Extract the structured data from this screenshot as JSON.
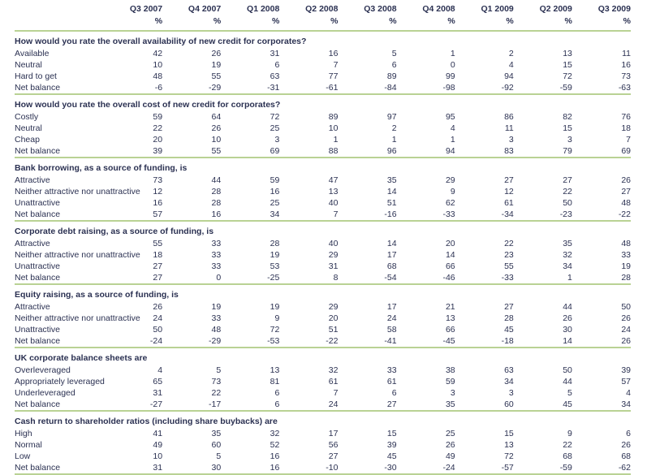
{
  "colors": {
    "text": "#2b3152",
    "rule": "#b9d294",
    "background": "#ffffff"
  },
  "table": {
    "columns": [
      "Q3 2007",
      "Q4 2007",
      "Q1 2008",
      "Q2 2008",
      "Q3 2008",
      "Q4 2008",
      "Q1 2009",
      "Q2 2009",
      "Q3 2009"
    ],
    "unit_label": "%",
    "sections": [
      {
        "title": "How would you rate the overall availability of new credit for corporates?",
        "rows": [
          {
            "label": "Available",
            "values": [
              42,
              26,
              31,
              16,
              5,
              1,
              2,
              13,
              11
            ]
          },
          {
            "label": "Neutral",
            "values": [
              10,
              19,
              6,
              7,
              6,
              0,
              4,
              15,
              16
            ]
          },
          {
            "label": "Hard to get",
            "values": [
              48,
              55,
              63,
              77,
              89,
              99,
              94,
              72,
              73
            ]
          },
          {
            "label": "Net balance",
            "values": [
              -6,
              -29,
              -31,
              -61,
              -84,
              -98,
              -92,
              -59,
              -63
            ]
          }
        ]
      },
      {
        "title": "How would you rate the overall cost of new credit for corporates?",
        "rows": [
          {
            "label": "Costly",
            "values": [
              59,
              64,
              72,
              89,
              97,
              95,
              86,
              82,
              76
            ]
          },
          {
            "label": "Neutral",
            "values": [
              22,
              26,
              25,
              10,
              2,
              4,
              11,
              15,
              18
            ]
          },
          {
            "label": "Cheap",
            "values": [
              20,
              10,
              3,
              1,
              1,
              1,
              3,
              3,
              7
            ]
          },
          {
            "label": "Net balance",
            "values": [
              39,
              55,
              69,
              88,
              96,
              94,
              83,
              79,
              69
            ]
          }
        ]
      },
      {
        "title": "Bank borrowing, as a source of funding, is",
        "rows": [
          {
            "label": "Attractive",
            "values": [
              73,
              44,
              59,
              47,
              35,
              29,
              27,
              27,
              26
            ]
          },
          {
            "label": "Neither attractive nor unattractive",
            "values": [
              12,
              28,
              16,
              13,
              14,
              9,
              12,
              22,
              27
            ]
          },
          {
            "label": "Unattractive",
            "values": [
              16,
              28,
              25,
              40,
              51,
              62,
              61,
              50,
              48
            ]
          },
          {
            "label": "Net balance",
            "values": [
              57,
              16,
              34,
              7,
              -16,
              -33,
              -34,
              -23,
              -22
            ]
          }
        ]
      },
      {
        "title": "Corporate debt raising, as a source of funding, is",
        "rows": [
          {
            "label": "Attractive",
            "values": [
              55,
              33,
              28,
              40,
              14,
              20,
              22,
              35,
              48
            ]
          },
          {
            "label": "Neither attractive nor unattractive",
            "values": [
              18,
              33,
              19,
              29,
              17,
              14,
              23,
              32,
              33
            ]
          },
          {
            "label": "Unattractive",
            "values": [
              27,
              33,
              53,
              31,
              68,
              66,
              55,
              34,
              19
            ]
          },
          {
            "label": "Net balance",
            "values": [
              27,
              0,
              -25,
              8,
              -54,
              -46,
              -33,
              1,
              28
            ]
          }
        ]
      },
      {
        "title": "Equity raising, as a source of funding, is",
        "rows": [
          {
            "label": "Attractive",
            "values": [
              26,
              19,
              19,
              29,
              17,
              21,
              27,
              44,
              50
            ]
          },
          {
            "label": "Neither attractive nor unattractive",
            "values": [
              24,
              33,
              9,
              20,
              24,
              13,
              28,
              26,
              26
            ]
          },
          {
            "label": "Unattractive",
            "values": [
              50,
              48,
              72,
              51,
              58,
              66,
              45,
              30,
              24
            ]
          },
          {
            "label": "Net balance",
            "values": [
              -24,
              -29,
              -53,
              -22,
              -41,
              -45,
              -18,
              14,
              26
            ]
          }
        ]
      },
      {
        "title": "UK corporate balance sheets are",
        "rows": [
          {
            "label": "Overleveraged",
            "values": [
              4,
              5,
              13,
              32,
              33,
              38,
              63,
              50,
              39
            ]
          },
          {
            "label": "Appropriately leveraged",
            "values": [
              65,
              73,
              81,
              61,
              61,
              59,
              34,
              44,
              57
            ]
          },
          {
            "label": "Underleveraged",
            "values": [
              31,
              22,
              6,
              7,
              6,
              3,
              3,
              5,
              4
            ]
          },
          {
            "label": "Net balance",
            "values": [
              -27,
              -17,
              6,
              24,
              27,
              35,
              60,
              45,
              34
            ]
          }
        ]
      },
      {
        "title": "Cash return to shareholder ratios (including share buybacks) are",
        "rows": [
          {
            "label": "High",
            "values": [
              41,
              35,
              32,
              17,
              15,
              25,
              15,
              9,
              6
            ]
          },
          {
            "label": "Normal",
            "values": [
              49,
              60,
              52,
              56,
              39,
              26,
              13,
              22,
              26
            ]
          },
          {
            "label": "Low",
            "values": [
              10,
              5,
              16,
              27,
              45,
              49,
              72,
              68,
              68
            ]
          },
          {
            "label": "Net balance",
            "values": [
              31,
              30,
              16,
              -10,
              -30,
              -24,
              -57,
              -59,
              -62
            ]
          }
        ]
      }
    ]
  }
}
